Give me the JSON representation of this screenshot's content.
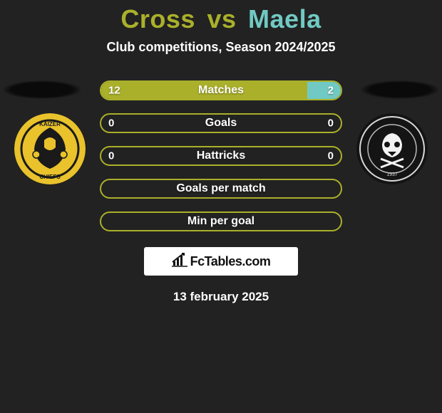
{
  "title": {
    "player1": "Cross",
    "vs": "vs",
    "player2": "Maela",
    "p1_color": "#aab02a",
    "p2_color": "#71c9c3"
  },
  "subtitle": "Club competitions, Season 2024/2025",
  "left_team": {
    "name": "Kaizer Chiefs",
    "crest_bg": "#e9c22c",
    "crest_inner": "#1a1a1a",
    "accent": "#aab02a"
  },
  "right_team": {
    "name": "Orlando Pirates",
    "crest_bg": "#141414",
    "crest_ring": "#d9d9d9",
    "accent": "#71c9c3"
  },
  "bars": [
    {
      "label": "Matches",
      "left_val": "12",
      "right_val": "2",
      "left_pct": 86,
      "right_pct": 14,
      "left_color": "#aab02a",
      "right_color": "#71c9c3",
      "border": "#aab02a"
    },
    {
      "label": "Goals",
      "left_val": "0",
      "right_val": "0",
      "left_pct": 0,
      "right_pct": 0,
      "left_color": "#aab02a",
      "right_color": "#71c9c3",
      "border": "#aab02a"
    },
    {
      "label": "Hattricks",
      "left_val": "0",
      "right_val": "0",
      "left_pct": 0,
      "right_pct": 0,
      "left_color": "#aab02a",
      "right_color": "#71c9c3",
      "border": "#aab02a"
    },
    {
      "label": "Goals per match",
      "left_val": "",
      "right_val": "",
      "left_pct": 0,
      "right_pct": 0,
      "left_color": "#aab02a",
      "right_color": "#71c9c3",
      "border": "#aab02a"
    },
    {
      "label": "Min per goal",
      "left_val": "",
      "right_val": "",
      "left_pct": 0,
      "right_pct": 0,
      "left_color": "#aab02a",
      "right_color": "#71c9c3",
      "border": "#aab02a"
    }
  ],
  "brand": "FcTables.com",
  "date": "13 february 2025",
  "bg_color": "#222222"
}
